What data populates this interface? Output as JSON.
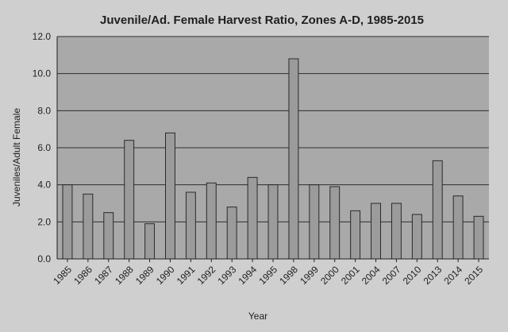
{
  "chart_data": {
    "type": "bar",
    "title": "Juvenile/Ad. Female Harvest Ratio, Zones A-D, 1985-2015",
    "xlabel": "Year",
    "ylabel": "Juveniles/Adult Female",
    "ylim": [
      0,
      12
    ],
    "yticks": [
      "0.0",
      "2.0",
      "4.0",
      "6.0",
      "8.0",
      "10.0",
      "12.0"
    ],
    "grid": true,
    "categories": [
      "1985",
      "1986",
      "1987",
      "1988",
      "1989",
      "1990",
      "1991",
      "1992",
      "1993",
      "1994",
      "1995",
      "1998",
      "1999",
      "2000",
      "2001",
      "2004",
      "2007",
      "2010",
      "2013",
      "2014",
      "2015"
    ],
    "values": [
      4.0,
      3.5,
      2.5,
      6.4,
      1.9,
      6.8,
      3.6,
      4.1,
      2.8,
      4.4,
      4.0,
      10.8,
      4.0,
      3.9,
      2.6,
      3.0,
      3.0,
      2.4,
      5.3,
      3.4,
      2.3
    ],
    "colors": {
      "plot_bg": "#a9a9a9",
      "bar_fill": "#9b9b9b",
      "bar_stroke": "#2a2a2a",
      "grid": "#2e2e2e",
      "page_bg": "#cfcfcf"
    }
  }
}
